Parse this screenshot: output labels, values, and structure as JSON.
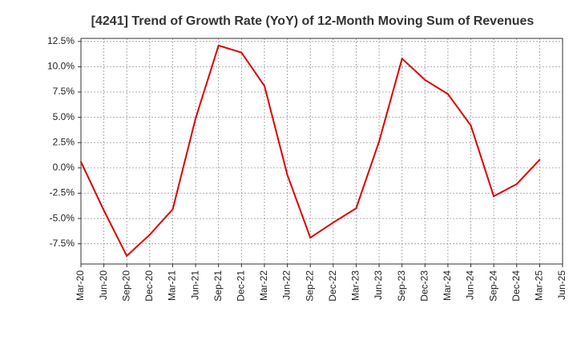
{
  "chart_data": {
    "type": "line",
    "title": "[4241]  Trend of Growth Rate (YoY) of 12-Month Moving Sum of Revenues",
    "xlabel": "",
    "ylabel": "",
    "ylim": [
      -9.5,
      12.8
    ],
    "yticks": [
      -7.5,
      -5.0,
      -2.5,
      0.0,
      2.5,
      5.0,
      7.5,
      10.0,
      12.5
    ],
    "ytick_labels": [
      "-7.5%",
      "-5.0%",
      "-2.5%",
      "0.0%",
      "2.5%",
      "5.0%",
      "7.5%",
      "10.0%",
      "12.5%"
    ],
    "categories": [
      "Mar-20",
      "Jun-20",
      "Sep-20",
      "Dec-20",
      "Mar-21",
      "Jun-21",
      "Sep-21",
      "Dec-21",
      "Mar-22",
      "Jun-22",
      "Sep-22",
      "Dec-22",
      "Mar-23",
      "Jun-23",
      "Sep-23",
      "Dec-23",
      "Mar-24",
      "Jun-24",
      "Sep-24",
      "Dec-24",
      "Mar-25",
      "Jun-25"
    ],
    "grid": true,
    "series": [
      {
        "color": "#dd0000",
        "values": [
          0.6,
          -4.2,
          -8.7,
          -6.6,
          -4.1,
          4.9,
          12.1,
          11.4,
          8.1,
          -0.7,
          -6.9,
          -5.4,
          -4.0,
          2.6,
          10.8,
          8.7,
          7.3,
          4.2,
          -2.8,
          -1.6,
          0.8,
          null
        ]
      }
    ]
  }
}
